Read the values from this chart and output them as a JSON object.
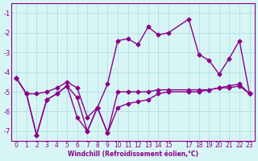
{
  "xlabel": "Windchill (Refroidissement éolien,°C)",
  "x_values": [
    0,
    1,
    2,
    3,
    4,
    5,
    6,
    7,
    8,
    9,
    10,
    11,
    12,
    13,
    14,
    15,
    17,
    18,
    19,
    20,
    21,
    22,
    23
  ],
  "line1": [
    -4.3,
    -5.1,
    -5.1,
    -5.0,
    -4.8,
    -4.5,
    -4.8,
    -6.3,
    -5.8,
    -4.6,
    -2.4,
    -2.3,
    -2.6,
    -1.7,
    -2.1,
    -2.0,
    -1.3,
    -3.1,
    -3.4,
    -4.1,
    -3.3,
    -2.4,
    -5.1
  ],
  "line2": [
    -4.3,
    -5.1,
    -7.2,
    -5.4,
    -5.1,
    -4.7,
    -5.3,
    -7.0,
    -5.8,
    -7.1,
    -5.8,
    -5.6,
    -5.5,
    -5.4,
    -5.1,
    -5.0,
    -5.0,
    -5.0,
    -4.9,
    -4.8,
    -4.7,
    -4.6,
    -5.1
  ],
  "line3": [
    -4.3,
    -5.1,
    -7.2,
    -5.4,
    -5.1,
    -4.7,
    -6.3,
    -7.0,
    -5.8,
    -7.1,
    -5.0,
    -5.0,
    -5.0,
    -5.0,
    -4.9,
    -4.9,
    -4.9,
    -4.9,
    -4.9,
    -4.8,
    -4.8,
    -4.7,
    -5.1
  ],
  "ylim": [
    -7.5,
    -0.5
  ],
  "xlim": [
    -0.5,
    23.5
  ],
  "yticks": [
    -7,
    -6,
    -5,
    -4,
    -3,
    -2,
    -1
  ],
  "xticks": [
    0,
    1,
    2,
    3,
    4,
    5,
    6,
    7,
    8,
    9,
    10,
    11,
    12,
    13,
    14,
    15,
    17,
    18,
    19,
    20,
    21,
    22,
    23
  ],
  "line_color": "#8B008B",
  "bg_color": "#d8f5f5",
  "grid_color": "#aadddd",
  "marker": "D",
  "marker_size": 2.5,
  "line_width": 1.0
}
